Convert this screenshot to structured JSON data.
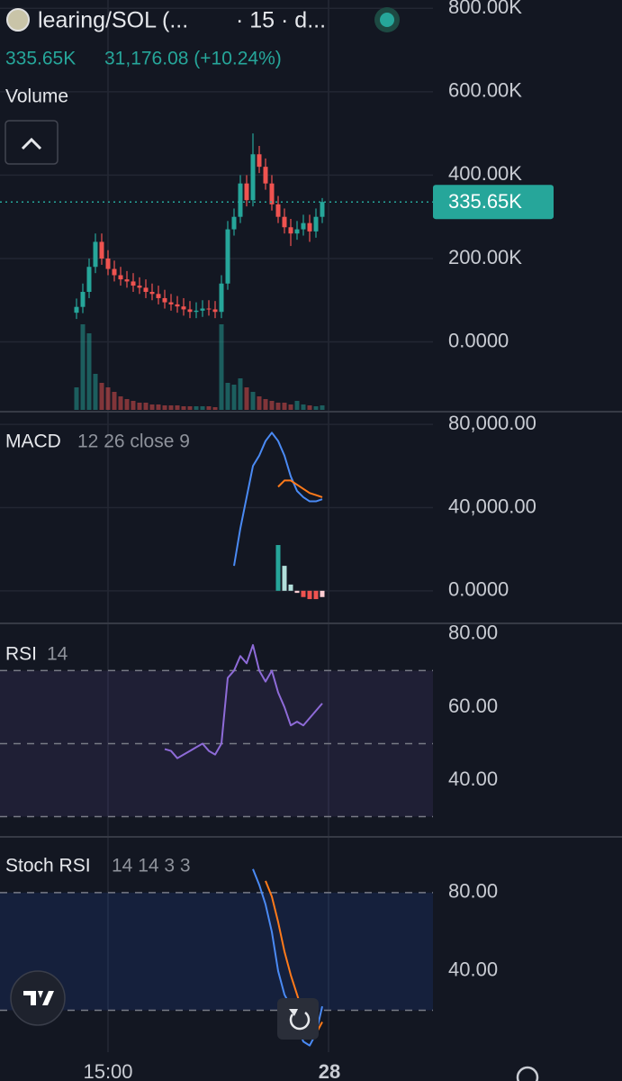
{
  "header": {
    "symbol": "learing/SOL (...",
    "interval": "· 15 · d...",
    "price": "335.65K",
    "change": "31,176.08 (+10.24%)"
  },
  "chart_data": [
    {
      "type": "candlestick",
      "title": "Volume",
      "time_labels": [
        "15:00",
        "28"
      ],
      "up_color": "#26a69a",
      "down_color": "#ef5350",
      "ylim": [
        -163000,
        820000
      ],
      "yticks": [
        {
          "value": 0,
          "label": "0.0000"
        },
        {
          "value": 200000,
          "label": "200.00K"
        },
        {
          "value": 400000,
          "label": "400.00K"
        },
        {
          "value": 600000,
          "label": "600.00K"
        },
        {
          "value": 800000,
          "label": "800.00K"
        }
      ],
      "open": [
        70000,
        84000,
        120000,
        180000,
        240000,
        200000,
        175000,
        160000,
        150000,
        145000,
        135000,
        130000,
        120000,
        115000,
        105000,
        95000,
        90000,
        85000,
        78000,
        72000,
        75000,
        80000,
        78000,
        72000,
        140000,
        270000,
        300000,
        380000,
        340000,
        450000,
        420000,
        380000,
        330000,
        300000,
        275000,
        260000,
        270000,
        285000,
        265000,
        300000
      ],
      "high": [
        104000,
        140000,
        200000,
        260000,
        260000,
        220000,
        195000,
        180000,
        170000,
        165000,
        155000,
        150000,
        140000,
        135000,
        125000,
        115000,
        110000,
        105000,
        98000,
        95000,
        100000,
        100000,
        98000,
        160000,
        290000,
        320000,
        400000,
        400000,
        500000,
        470000,
        440000,
        400000,
        350000,
        320000,
        295000,
        290000,
        305000,
        305000,
        320000,
        345000
      ],
      "low": [
        55000,
        69000,
        105000,
        165000,
        185000,
        160000,
        145000,
        135000,
        130000,
        120000,
        115000,
        105000,
        100000,
        90000,
        80000,
        75000,
        70000,
        63000,
        57000,
        57000,
        60000,
        63000,
        57000,
        57000,
        125000,
        255000,
        285000,
        325000,
        325000,
        405000,
        365000,
        315000,
        285000,
        260000,
        230000,
        245000,
        255000,
        240000,
        250000,
        285000
      ],
      "close": [
        84000,
        120000,
        180000,
        240000,
        200000,
        175000,
        160000,
        150000,
        145000,
        135000,
        130000,
        120000,
        115000,
        105000,
        95000,
        90000,
        85000,
        78000,
        72000,
        75000,
        80000,
        78000,
        72000,
        140000,
        270000,
        300000,
        380000,
        340000,
        450000,
        420000,
        380000,
        330000,
        300000,
        275000,
        260000,
        270000,
        285000,
        265000,
        300000,
        335650
      ],
      "volume": [
        25,
        95,
        85,
        40,
        30,
        25,
        20,
        15,
        12,
        10,
        8,
        8,
        6,
        6,
        5,
        5,
        5,
        4,
        4,
        4,
        4,
        4,
        3,
        95,
        30,
        28,
        35,
        25,
        20,
        15,
        12,
        10,
        8,
        8,
        6,
        10,
        6,
        5,
        4,
        5
      ]
    },
    {
      "type": "line",
      "title": "MACD",
      "params": "12 26 close 9",
      "ylim": [
        -14800,
        86100
      ],
      "yticks": [
        {
          "value": 0,
          "label": "0.0000"
        },
        {
          "value": 40000,
          "label": "40,000.00"
        },
        {
          "value": 80000,
          "label": "80,000.00"
        }
      ],
      "series": [
        {
          "color": "#4a8af4",
          "values": [
            null,
            null,
            null,
            null,
            null,
            null,
            null,
            null,
            null,
            null,
            null,
            null,
            null,
            null,
            null,
            null,
            null,
            null,
            null,
            null,
            null,
            null,
            null,
            null,
            null,
            12000,
            30000,
            45000,
            60000,
            65000,
            72000,
            76000,
            72000,
            65000,
            55000,
            48000,
            45000,
            43000,
            43000,
            44000
          ]
        },
        {
          "color": "#ff7a1a",
          "values": [
            null,
            null,
            null,
            null,
            null,
            null,
            null,
            null,
            null,
            null,
            null,
            null,
            null,
            null,
            null,
            null,
            null,
            null,
            null,
            null,
            null,
            null,
            null,
            null,
            null,
            null,
            null,
            null,
            null,
            null,
            null,
            null,
            50000,
            53000,
            53000,
            51000,
            49000,
            47000,
            46000,
            45000
          ]
        }
      ],
      "histogram": {
        "colors": {
          "up": "#26a69a",
          "up_fading": "#b2dfdb",
          "down": "#ef5350",
          "down_fading": "#ffcdd2"
        },
        "values": [
          null,
          null,
          null,
          null,
          null,
          null,
          null,
          null,
          null,
          null,
          null,
          null,
          null,
          null,
          null,
          null,
          null,
          null,
          null,
          null,
          null,
          null,
          null,
          null,
          null,
          null,
          null,
          null,
          null,
          null,
          null,
          null,
          22000,
          12000,
          3000,
          -1000,
          -3000,
          -4000,
          -4000,
          -3000
        ]
      }
    },
    {
      "type": "line",
      "title": "RSI",
      "params": "14",
      "ylim": [
        24.7,
        82.2
      ],
      "yticks": [
        {
          "value": 40,
          "label": "40.00"
        },
        {
          "value": 60,
          "label": "60.00"
        },
        {
          "value": 80,
          "label": "80.00"
        }
      ],
      "bands": [
        30,
        70
      ],
      "midline": 50,
      "band_color": "#7e57c2",
      "series": [
        {
          "color": "#8e6bd8",
          "values": [
            null,
            null,
            null,
            null,
            null,
            null,
            null,
            null,
            null,
            null,
            null,
            null,
            null,
            null,
            48.5,
            48,
            46,
            47,
            48,
            49,
            50,
            48,
            47,
            50,
            68,
            70,
            74,
            72,
            77,
            70,
            67,
            70,
            64,
            60,
            55,
            56,
            55,
            57,
            59,
            61
          ]
        }
      ]
    },
    {
      "type": "line",
      "title": "Stoch RSI",
      "params": "14 14 3 3",
      "ylim": [
        -1.4,
        108
      ],
      "yticks": [
        {
          "value": 40,
          "label": "40.00"
        },
        {
          "value": 80,
          "label": "80.00"
        }
      ],
      "bands": [
        20,
        80
      ],
      "band_color": "#2962ff",
      "series": [
        {
          "color": "#4a8af4",
          "values": [
            null,
            null,
            null,
            null,
            null,
            null,
            null,
            null,
            null,
            null,
            null,
            null,
            null,
            null,
            null,
            null,
            null,
            null,
            null,
            null,
            null,
            null,
            null,
            null,
            null,
            null,
            null,
            null,
            92,
            84,
            74,
            60,
            40,
            28,
            22,
            12,
            4,
            2,
            8,
            22
          ]
        },
        {
          "color": "#ff7a1a",
          "values": [
            null,
            null,
            null,
            null,
            null,
            null,
            null,
            null,
            null,
            null,
            null,
            null,
            null,
            null,
            null,
            null,
            null,
            null,
            null,
            null,
            null,
            null,
            null,
            null,
            null,
            null,
            null,
            null,
            null,
            null,
            86,
            78,
            65,
            50,
            38,
            28,
            18,
            10,
            8,
            14
          ]
        }
      ]
    }
  ]
}
